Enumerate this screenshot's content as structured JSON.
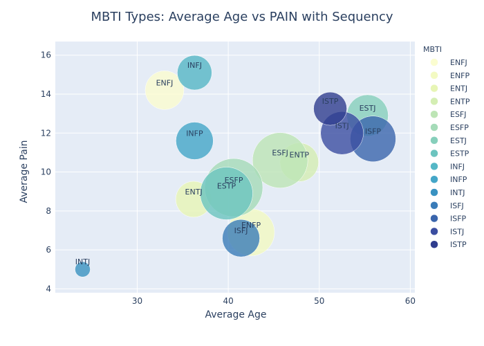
{
  "chart_data": {
    "type": "scatter",
    "title": "MBTI Types: Average Age vs PAIN with Sequency",
    "xlabel": "Average Age",
    "ylabel": "Average Pain",
    "xlim": [
      21,
      60.5
    ],
    "ylim": [
      3.8,
      16.7
    ],
    "xticks": [
      30,
      40,
      50,
      60
    ],
    "yticks": [
      4,
      6,
      8,
      10,
      12,
      14,
      16
    ],
    "grid": true,
    "legend_title": "MBTI",
    "legend_position": "right",
    "series": [
      {
        "name": "ENFJ",
        "color": "#fbfdd0",
        "points": [
          {
            "x": 33.0,
            "y": 14.2,
            "size": 28,
            "label": "ENFJ"
          }
        ]
      },
      {
        "name": "ENFP",
        "color": "#f3fac2",
        "points": [
          {
            "x": 42.5,
            "y": 6.9,
            "size": 34,
            "label": "ENFP"
          }
        ]
      },
      {
        "name": "ENTJ",
        "color": "#e7f5b5",
        "points": [
          {
            "x": 36.2,
            "y": 8.6,
            "size": 26,
            "label": "ENTJ"
          }
        ]
      },
      {
        "name": "ENTP",
        "color": "#d4eeb3",
        "points": [
          {
            "x": 47.8,
            "y": 10.5,
            "size": 28,
            "label": "ENTP"
          }
        ]
      },
      {
        "name": "ESFJ",
        "color": "#bde5b5",
        "points": [
          {
            "x": 45.7,
            "y": 10.6,
            "size": 40,
            "label": "ESFJ"
          }
        ]
      },
      {
        "name": "ESFP",
        "color": "#a5dbb8",
        "points": [
          {
            "x": 40.6,
            "y": 9.2,
            "size": 42,
            "label": "ESFP"
          }
        ]
      },
      {
        "name": "ESTJ",
        "color": "#86cfbb",
        "points": [
          {
            "x": 55.3,
            "y": 12.9,
            "size": 30,
            "label": "ESTJ"
          }
        ]
      },
      {
        "name": "ESTP",
        "color": "#6cc4bf",
        "points": [
          {
            "x": 39.8,
            "y": 8.9,
            "size": 38,
            "label": "ESTP"
          }
        ]
      },
      {
        "name": "INFJ",
        "color": "#55b7c6",
        "points": [
          {
            "x": 36.3,
            "y": 15.1,
            "size": 25,
            "label": "INFJ"
          }
        ]
      },
      {
        "name": "INFP",
        "color": "#44a6c8",
        "points": [
          {
            "x": 36.3,
            "y": 11.6,
            "size": 27,
            "label": "INFP"
          }
        ]
      },
      {
        "name": "INTJ",
        "color": "#3992c1",
        "points": [
          {
            "x": 24.0,
            "y": 5.0,
            "size": 11,
            "label": "INTJ"
          }
        ]
      },
      {
        "name": "ISFJ",
        "color": "#3a7cb8",
        "points": [
          {
            "x": 41.4,
            "y": 6.6,
            "size": 27,
            "label": "ISFJ"
          }
        ]
      },
      {
        "name": "ISFP",
        "color": "#3a65ac",
        "points": [
          {
            "x": 55.9,
            "y": 11.7,
            "size": 33,
            "label": "ISFP"
          }
        ]
      },
      {
        "name": "ISTJ",
        "color": "#3b4ea1",
        "points": [
          {
            "x": 52.5,
            "y": 12.0,
            "size": 31,
            "label": "ISTJ"
          }
        ]
      },
      {
        "name": "ISTP",
        "color": "#2f3d8e",
        "points": [
          {
            "x": 51.2,
            "y": 13.25,
            "size": 24,
            "label": "ISTP"
          }
        ]
      }
    ]
  }
}
